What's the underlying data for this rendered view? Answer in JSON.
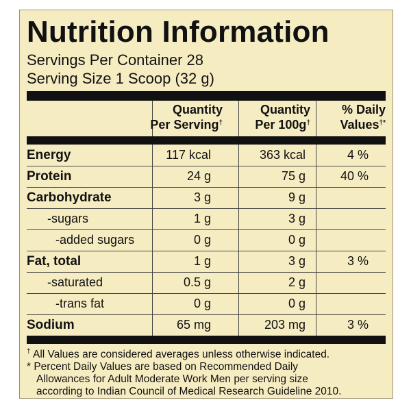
{
  "title": "Nutrition Information",
  "servings_per_container": "Servings Per Container 28",
  "serving_size": "Serving Size 1 Scoop (32 g)",
  "columns": [
    {
      "line1": "Quantity",
      "line2": "Per Serving",
      "mark": "†"
    },
    {
      "line1": "Quantity",
      "line2": "Per 100g",
      "mark": "†"
    },
    {
      "line1": "% Daily",
      "line2": "Values",
      "mark": "†*"
    }
  ],
  "rows": [
    {
      "name": "Energy",
      "per_serving": "117 kcal",
      "per_100g": "363 kcal",
      "daily": "4 %"
    },
    {
      "name": "Protein",
      "per_serving": "24 g",
      "per_100g": "75 g",
      "daily": "40 %"
    },
    {
      "name": "Carbohydrate",
      "per_serving": "3 g",
      "per_100g": "9 g",
      "daily": ""
    },
    {
      "name": "-sugars",
      "per_serving": "1 g",
      "per_100g": "3 g",
      "daily": ""
    },
    {
      "name": "-added sugars",
      "per_serving": "0 g",
      "per_100g": "0 g",
      "daily": ""
    },
    {
      "name": "Fat, total",
      "per_serving": "1 g",
      "per_100g": "3 g",
      "daily": "3 %"
    },
    {
      "name": "-saturated",
      "per_serving": "0.5 g",
      "per_100g": "2 g",
      "daily": ""
    },
    {
      "name": "-trans fat",
      "per_serving": "0 g",
      "per_100g": "0 g",
      "daily": ""
    },
    {
      "name": "Sodium",
      "per_serving": "65 mg",
      "per_100g": "203 mg",
      "daily": "3 %"
    }
  ],
  "footnotes": {
    "dagger_mark": "†",
    "dagger": "All Values are considered averages unless otherwise indicated.",
    "star_line1": "* Percent Daily Values are based on Recommended Daily",
    "star_line2": "Allowances for Adult Moderate Work Men per serving size",
    "star_line3": "according to Indian Council of Medical Research Guideline 2010."
  },
  "colors": {
    "panel_background": "#f6ecc2",
    "text": "#111111",
    "rule": "#111111"
  }
}
